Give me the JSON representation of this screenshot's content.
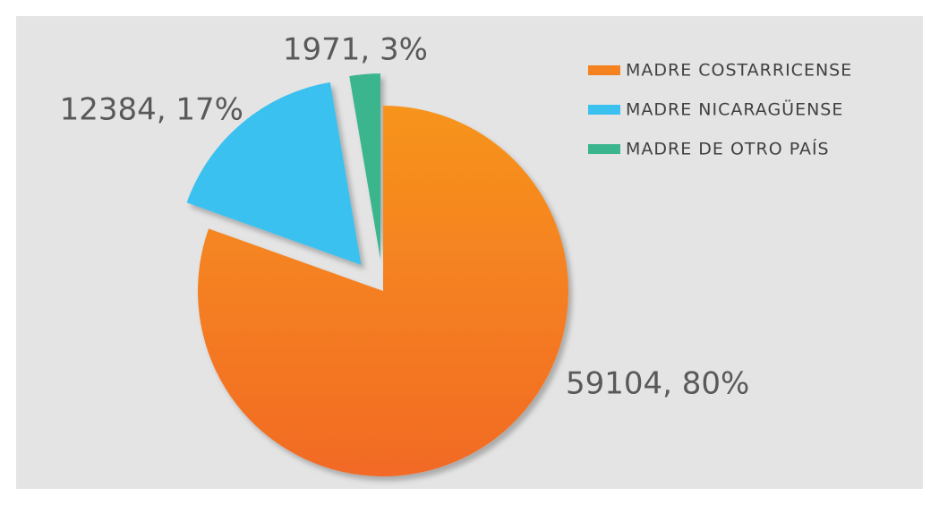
{
  "chart_data": {
    "type": "pie",
    "categories": [
      "MADRE COSTARRICENSE",
      "MADRE NICARAGÜENSE",
      "MADRE DE OTRO PAÍS"
    ],
    "values": [
      59104,
      12384,
      1971
    ],
    "value_labels": [
      "59104,  80%",
      "12384, 17%",
      "1971, 3%"
    ],
    "colors": [
      "#f58220",
      "#3bc1ef",
      "#3bb58e"
    ],
    "legend": "upper right"
  }
}
